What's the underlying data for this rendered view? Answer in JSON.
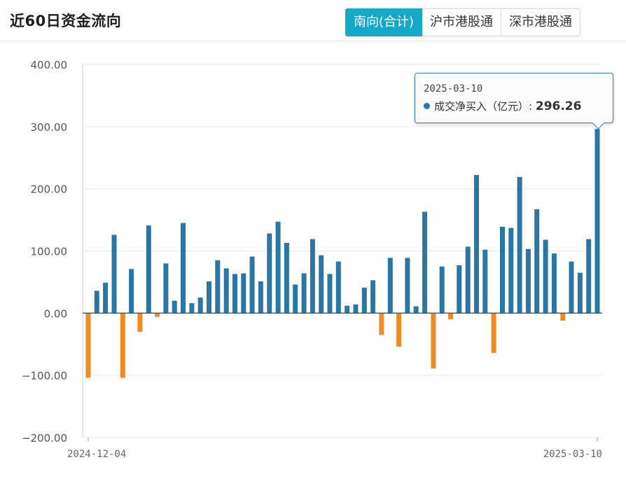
{
  "header": {
    "title": "近60日资金流向"
  },
  "tabs": [
    {
      "label": "南向(合计)",
      "active": true
    },
    {
      "label": "沪市港股通",
      "active": false
    },
    {
      "label": "深市港股通",
      "active": false
    }
  ],
  "tooltip": {
    "date": "2025-03-10",
    "series_label": "成交净买入（亿元）",
    "separator": ":",
    "value": "296.26"
  },
  "chart_data": {
    "type": "bar",
    "ylim": [
      -200,
      400
    ],
    "yticks": [
      "400.00",
      "300.00",
      "200.00",
      "100.00",
      "0.00",
      "−100.00",
      "−200.00"
    ],
    "x_tick_labels": [
      "2024-12-04",
      "2025-03-10"
    ],
    "grid": true,
    "colors": {
      "positive": "#2a77a3",
      "negative": "#f08a24"
    },
    "values": [
      -104,
      36,
      49,
      126,
      -104,
      71,
      -30,
      141,
      -6,
      80,
      20,
      145,
      16,
      25,
      51,
      85,
      72,
      63,
      64,
      91,
      51,
      128,
      147,
      113,
      46,
      64,
      119,
      93,
      63,
      83,
      12,
      14,
      41,
      53,
      -35,
      89,
      -54,
      89,
      11,
      163,
      -89,
      75,
      -10,
      77,
      107,
      222,
      102,
      -64,
      139,
      137,
      219,
      103,
      167,
      118,
      96,
      -12,
      83,
      65,
      119,
      296.26
    ]
  }
}
